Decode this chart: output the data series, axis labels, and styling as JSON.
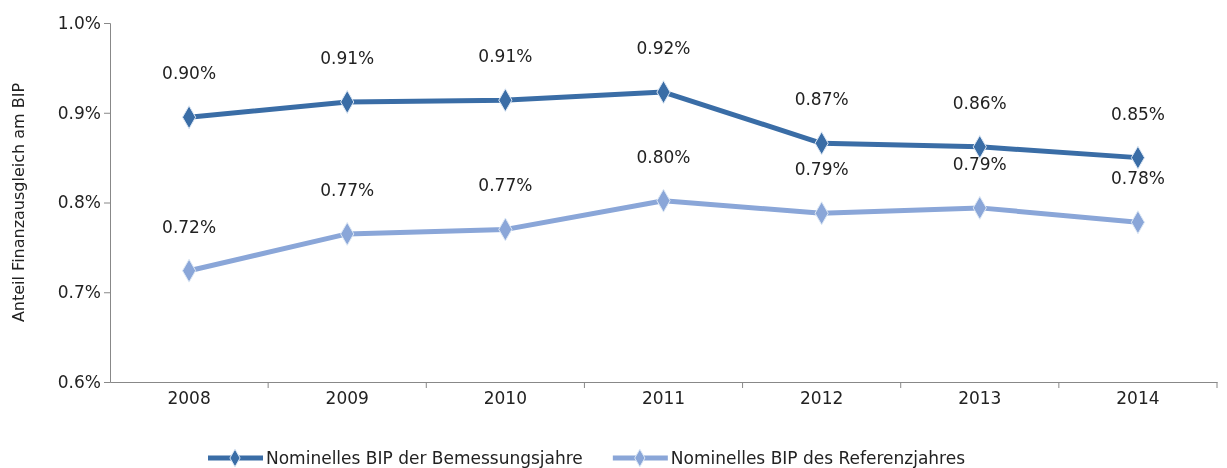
{
  "chart_data": {
    "type": "line",
    "ylabel": "Anteil Finanzausgleich am BIP",
    "categories": [
      "2008",
      "2009",
      "2010",
      "2011",
      "2012",
      "2013",
      "2014"
    ],
    "series": [
      {
        "name": "Nominelles BIP der Bemessungsjahre",
        "color": "#3a6da6",
        "values": [
          0.895,
          0.912,
          0.914,
          0.923,
          0.866,
          0.862,
          0.85
        ],
        "value_labels": [
          "0.90%",
          "0.91%",
          "0.91%",
          "0.92%",
          "0.87%",
          "0.86%",
          "0.85%"
        ]
      },
      {
        "name": "Nominelles BIP des Referenzjahres",
        "color": "#8aa6d8",
        "values": [
          0.724,
          0.765,
          0.77,
          0.802,
          0.788,
          0.794,
          0.778
        ],
        "value_labels": [
          "0.72%",
          "0.77%",
          "0.77%",
          "0.80%",
          "0.79%",
          "0.79%",
          "0.78%"
        ]
      }
    ],
    "ylim": [
      0.6,
      1.0
    ],
    "yticks": [
      {
        "value": 0.6,
        "label": "0.6%"
      },
      {
        "value": 0.7,
        "label": "0.7%"
      },
      {
        "value": 0.8,
        "label": "0.8%"
      },
      {
        "value": 0.9,
        "label": "0.9%"
      },
      {
        "value": 1.0,
        "label": "1.0%"
      }
    ],
    "marker": "diamond",
    "legend": "bottom",
    "grid": false
  }
}
